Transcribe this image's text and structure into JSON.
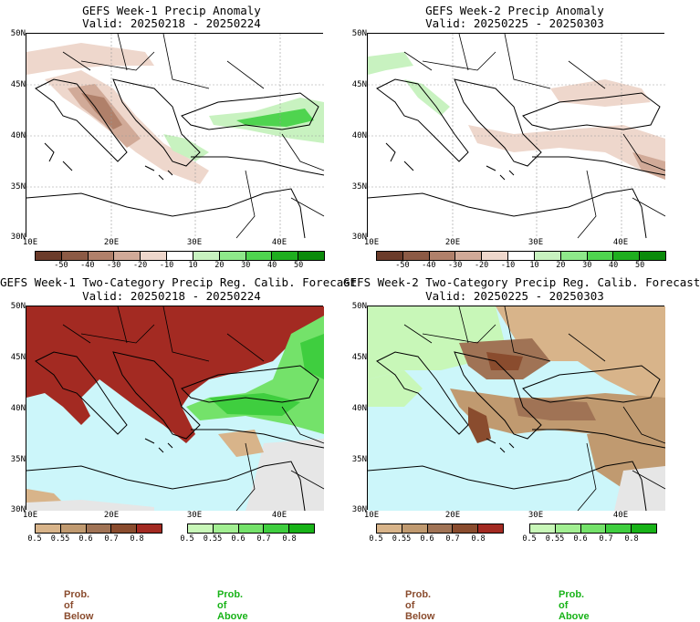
{
  "panels": [
    {
      "title": "GEFS Week-1 Precip Anomaly",
      "valid": "Valid: 20250218 - 20250224",
      "lat_labels": [
        "50N",
        "45N",
        "40N",
        "35N",
        "30N"
      ],
      "lon_labels": [
        "10E",
        "20E",
        "30E",
        "40E"
      ],
      "colorbar_labels": [
        "-50",
        "-40",
        "-30",
        "-20",
        "-10",
        "10",
        "20",
        "30",
        "40",
        "50"
      ],
      "colors": [
        "#6b3b2a",
        "#8c5a45",
        "#b0806a",
        "#d1aa98",
        "#eed7cc",
        "#ffffff",
        "#c8f2c0",
        "#8ee88a",
        "#4fd44f",
        "#1fae1f",
        "#0a8a0a"
      ]
    },
    {
      "title": "GEFS Week-2 Precip Anomaly",
      "valid": "Valid: 20250225 - 20250303",
      "lat_labels": [
        "50N",
        "45N",
        "40N",
        "35N",
        "30N"
      ],
      "lon_labels": [
        "10E",
        "20E",
        "30E",
        "40E"
      ],
      "colorbar_labels": [
        "-50",
        "-40",
        "-30",
        "-20",
        "-10",
        "10",
        "20",
        "30",
        "40",
        "50"
      ],
      "colors": [
        "#6b3b2a",
        "#8c5a45",
        "#b0806a",
        "#d1aa98",
        "#eed7cc",
        "#ffffff",
        "#c8f2c0",
        "#8ee88a",
        "#4fd44f",
        "#1fae1f",
        "#0a8a0a"
      ]
    },
    {
      "title": "GEFS Week-1 Two-Category Precip Reg. Calib. Forecast",
      "valid": "Valid: 20250218 - 20250224",
      "lat_labels": [
        "50N",
        "45N",
        "40N",
        "35N",
        "30N"
      ],
      "lon_labels": [
        "10E",
        "20E",
        "30E",
        "40E"
      ],
      "below_labels": [
        "0.5",
        "0.55",
        "0.6",
        "0.7",
        "0.8"
      ],
      "above_labels": [
        "0.5",
        "0.55",
        "0.6",
        "0.7",
        "0.8"
      ],
      "below_colors": [
        "#d8b48a",
        "#c09a70",
        "#a07355",
        "#8a4c2e",
        "#a32a22"
      ],
      "above_colors": [
        "#c8f7b8",
        "#a2ef92",
        "#74e26a",
        "#3fce3f",
        "#18b318"
      ],
      "below_caption": "Prob. of Below",
      "above_caption": "Prob. of Above"
    },
    {
      "title": "GEFS Week-2 Two-Category Precip Reg. Calib. Forecast",
      "valid": "Valid: 20250225 - 20250303",
      "lat_labels": [
        "50N",
        "45N",
        "40N",
        "35N",
        "30N"
      ],
      "lon_labels": [
        "10E",
        "20E",
        "30E",
        "40E"
      ],
      "below_labels": [
        "0.5",
        "0.55",
        "0.6",
        "0.7",
        "0.8"
      ],
      "above_labels": [
        "0.5",
        "0.55",
        "0.6",
        "0.7",
        "0.8"
      ],
      "below_colors": [
        "#d8b48a",
        "#c09a70",
        "#a07355",
        "#8a4c2e",
        "#a32a22"
      ],
      "above_colors": [
        "#c8f7b8",
        "#a2ef92",
        "#74e26a",
        "#3fce3f",
        "#18b318"
      ],
      "below_caption": "Prob. of Below",
      "above_caption": "Prob. of Above"
    }
  ],
  "map_colors": {
    "sea": "#ccf6fa",
    "land_missing": "#e6e6e6",
    "coast": "#000000"
  }
}
